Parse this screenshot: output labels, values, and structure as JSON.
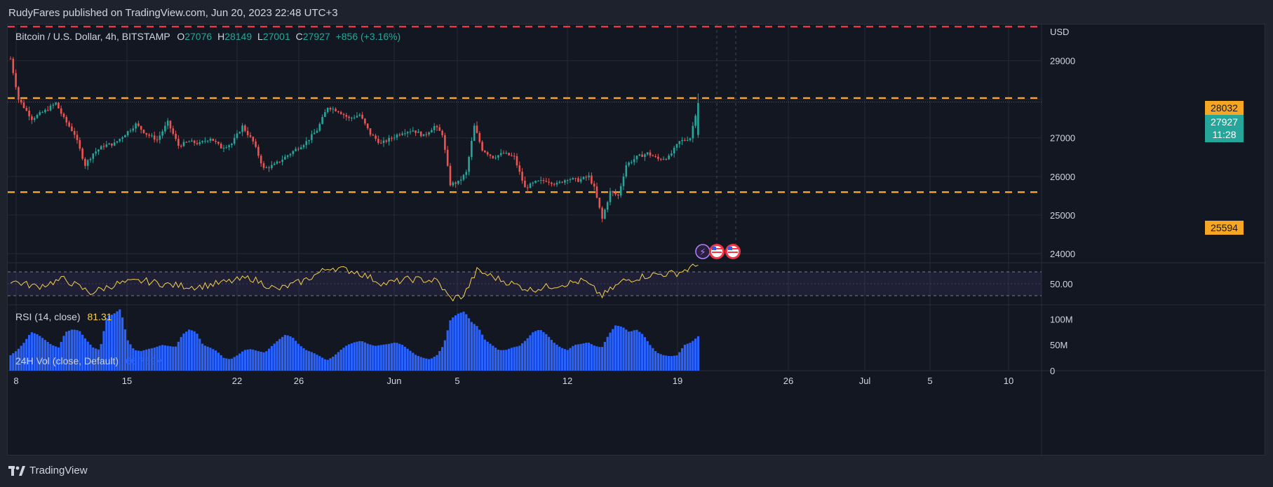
{
  "publish_line": "RudyFares published on TradingView.com, Jun 20, 2023 22:48 UTC+3",
  "legend": {
    "symbol": "Bitcoin / U.S. Dollar, 4h, BITSTAMP",
    "o_label": "O",
    "o_value": "27076",
    "h_label": "H",
    "h_value": "28149",
    "l_label": "L",
    "l_value": "27001",
    "c_label": "C",
    "c_value": "27927",
    "change": "+856 (+3.16%)"
  },
  "rsi": {
    "label": "RSI (14, close)",
    "value": "81.31",
    "axis_label": "50.00"
  },
  "volume": {
    "label": "24H Vol (close, Default)",
    "value": "66.759M",
    "axis_labels": [
      "100M",
      "50M",
      "0"
    ]
  },
  "price_axis": {
    "currency": "USD",
    "ticks": [
      "29000",
      "27000",
      "26000",
      "25000",
      "24000"
    ]
  },
  "tags": {
    "resistance": "28032",
    "support": "25594",
    "last_price": "27927",
    "countdown": "11:28"
  },
  "time_axis": [
    "8",
    "15",
    "22",
    "26",
    "Jun",
    "5",
    "12",
    "19",
    "26",
    "Jul",
    "5",
    "10"
  ],
  "brand": "TradingView",
  "colors": {
    "up": "#26a69a",
    "down": "#ef5350",
    "level": "#f5a623",
    "top_line": "#f23645",
    "rsi": "#f7d04a",
    "volume": "#2962ff"
  },
  "chart_data": {
    "type": "candlestick",
    "title": "Bitcoin / U.S. Dollar, 4h, BITSTAMP",
    "ylim": [
      23800,
      29900
    ],
    "horizontal_levels": [
      {
        "price": 29880,
        "style": "dashed",
        "color": "#f23645"
      },
      {
        "price": 28032,
        "style": "dashed",
        "color": "#f5a623"
      },
      {
        "price": 25594,
        "style": "dashed",
        "color": "#f5a623"
      }
    ],
    "close_path": [
      [
        0,
        29050
      ],
      [
        3,
        28000
      ],
      [
        8,
        27500
      ],
      [
        13,
        27700
      ],
      [
        17,
        27900
      ],
      [
        20,
        27500
      ],
      [
        24,
        27100
      ],
      [
        28,
        26300
      ],
      [
        31,
        26600
      ],
      [
        35,
        26800
      ],
      [
        39,
        26850
      ],
      [
        43,
        27100
      ],
      [
        47,
        27350
      ],
      [
        51,
        27100
      ],
      [
        55,
        26950
      ],
      [
        59,
        27400
      ],
      [
        63,
        26800
      ],
      [
        67,
        26900
      ],
      [
        71,
        26850
      ],
      [
        75,
        27000
      ],
      [
        79,
        26750
      ],
      [
        83,
        26850
      ],
      [
        87,
        27300
      ],
      [
        91,
        26900
      ],
      [
        95,
        26200
      ],
      [
        99,
        26300
      ],
      [
        103,
        26500
      ],
      [
        107,
        26700
      ],
      [
        111,
        26900
      ],
      [
        115,
        27200
      ],
      [
        119,
        27800
      ],
      [
        123,
        27700
      ],
      [
        127,
        27500
      ],
      [
        131,
        27600
      ],
      [
        135,
        27100
      ],
      [
        139,
        26850
      ],
      [
        143,
        27000
      ],
      [
        147,
        27150
      ],
      [
        151,
        27200
      ],
      [
        155,
        27050
      ],
      [
        159,
        27300
      ],
      [
        162,
        27100
      ],
      [
        165,
        25800
      ],
      [
        168,
        25850
      ],
      [
        171,
        26100
      ],
      [
        174,
        27300
      ],
      [
        177,
        26700
      ],
      [
        181,
        26500
      ],
      [
        185,
        26600
      ],
      [
        189,
        26500
      ],
      [
        193,
        25700
      ],
      [
        197,
        25850
      ],
      [
        201,
        25900
      ],
      [
        205,
        25800
      ],
      [
        209,
        25950
      ],
      [
        213,
        25900
      ],
      [
        217,
        26000
      ],
      [
        219,
        25700
      ],
      [
        222,
        24900
      ],
      [
        225,
        25600
      ],
      [
        228,
        25500
      ],
      [
        231,
        26300
      ],
      [
        235,
        26500
      ],
      [
        239,
        26600
      ],
      [
        243,
        26450
      ],
      [
        247,
        26500
      ],
      [
        251,
        26900
      ],
      [
        255,
        27000
      ],
      [
        258,
        27927
      ]
    ],
    "rsi": [
      [
        0,
        55
      ],
      [
        10,
        45
      ],
      [
        20,
        58
      ],
      [
        30,
        35
      ],
      [
        40,
        50
      ],
      [
        50,
        55
      ],
      [
        60,
        48
      ],
      [
        70,
        45
      ],
      [
        80,
        52
      ],
      [
        90,
        60
      ],
      [
        100,
        40
      ],
      [
        110,
        55
      ],
      [
        120,
        78
      ],
      [
        130,
        70
      ],
      [
        140,
        50
      ],
      [
        150,
        58
      ],
      [
        160,
        55
      ],
      [
        165,
        25
      ],
      [
        170,
        30
      ],
      [
        175,
        72
      ],
      [
        185,
        55
      ],
      [
        195,
        40
      ],
      [
        205,
        48
      ],
      [
        215,
        55
      ],
      [
        222,
        30
      ],
      [
        230,
        55
      ],
      [
        240,
        65
      ],
      [
        250,
        68
      ],
      [
        258,
        81.31
      ]
    ],
    "volume_millions": [
      30,
      40,
      55,
      75,
      70,
      60,
      50,
      45,
      75,
      80,
      78,
      60,
      45,
      40,
      105,
      110,
      120,
      60,
      40,
      38,
      42,
      45,
      50,
      48,
      46,
      70,
      80,
      75,
      50,
      45,
      38,
      25,
      22,
      30,
      40,
      42,
      38,
      35,
      48,
      60,
      70,
      65,
      50,
      40,
      35,
      28,
      20,
      28,
      40,
      50,
      55,
      58,
      52,
      48,
      50,
      52,
      55,
      50,
      40,
      30,
      25,
      22,
      30,
      50,
      100,
      110,
      115,
      95,
      85,
      60,
      50,
      40,
      40,
      45,
      48,
      60,
      75,
      80,
      70,
      55,
      45,
      40,
      50,
      52,
      55,
      48,
      45,
      70,
      88,
      85,
      75,
      80,
      70,
      50,
      35,
      30,
      28,
      30,
      50,
      55,
      66.759
    ]
  }
}
